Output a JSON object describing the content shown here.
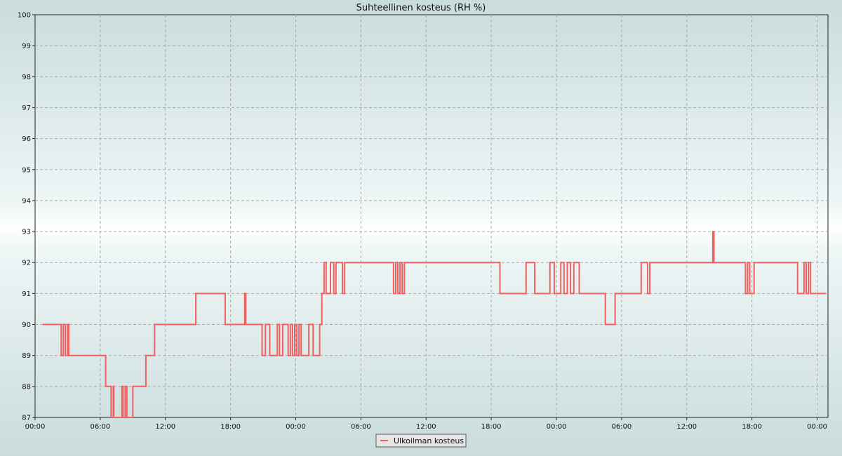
{
  "chart_data": {
    "type": "line",
    "title": "Suhteellinen kosteus (RH %)",
    "xlabel": "",
    "ylabel": "",
    "ylim": [
      87,
      100
    ],
    "y_ticks": [
      "87",
      "88",
      "89",
      "90",
      "91",
      "92",
      "93",
      "94",
      "95",
      "96",
      "97",
      "98",
      "99",
      "100"
    ],
    "x_tick_labels": [
      "00:00",
      "06:00",
      "12:00",
      "18:00",
      "00:00",
      "06:00",
      "12:00",
      "18:00",
      "00:00",
      "06:00",
      "12:00",
      "18:00",
      "00:00"
    ],
    "x_range_hours": [
      0,
      73
    ],
    "grid": true,
    "legend_position": "bottom",
    "series": [
      {
        "name": "Ulkoilman kosteus",
        "color": "#f06060",
        "points": [
          [
            0.7,
            90
          ],
          [
            2.4,
            90
          ],
          [
            2.4,
            89
          ],
          [
            2.6,
            89
          ],
          [
            2.6,
            90
          ],
          [
            2.8,
            90
          ],
          [
            2.8,
            89
          ],
          [
            3.0,
            89
          ],
          [
            3.0,
            90
          ],
          [
            3.1,
            90
          ],
          [
            3.1,
            89
          ],
          [
            6.5,
            89
          ],
          [
            6.5,
            88
          ],
          [
            7.0,
            88
          ],
          [
            7.0,
            87
          ],
          [
            7.2,
            87
          ],
          [
            7.2,
            88
          ],
          [
            7.25,
            88
          ],
          [
            7.25,
            87
          ],
          [
            8.0,
            87
          ],
          [
            8.0,
            88
          ],
          [
            8.1,
            88
          ],
          [
            8.1,
            87
          ],
          [
            8.3,
            87
          ],
          [
            8.3,
            88
          ],
          [
            8.45,
            88
          ],
          [
            8.45,
            87
          ],
          [
            9.0,
            87
          ],
          [
            9.0,
            88
          ],
          [
            10.2,
            88
          ],
          [
            10.2,
            89
          ],
          [
            11.0,
            89
          ],
          [
            11.0,
            90
          ],
          [
            14.8,
            90
          ],
          [
            14.8,
            91
          ],
          [
            17.5,
            91
          ],
          [
            17.5,
            90
          ],
          [
            19.3,
            90
          ],
          [
            19.3,
            91
          ],
          [
            19.4,
            91
          ],
          [
            19.4,
            90
          ],
          [
            20.9,
            90
          ],
          [
            20.9,
            89
          ],
          [
            21.2,
            89
          ],
          [
            21.2,
            90
          ],
          [
            21.6,
            90
          ],
          [
            21.6,
            89
          ],
          [
            22.3,
            89
          ],
          [
            22.3,
            90
          ],
          [
            22.5,
            90
          ],
          [
            22.5,
            89
          ],
          [
            22.8,
            89
          ],
          [
            22.8,
            90
          ],
          [
            23.3,
            90
          ],
          [
            23.3,
            89
          ],
          [
            23.5,
            89
          ],
          [
            23.5,
            90
          ],
          [
            23.7,
            90
          ],
          [
            23.7,
            89
          ],
          [
            23.9,
            89
          ],
          [
            23.9,
            90
          ],
          [
            24.1,
            90
          ],
          [
            24.1,
            89
          ],
          [
            24.3,
            89
          ],
          [
            24.3,
            90
          ],
          [
            24.5,
            90
          ],
          [
            24.5,
            89
          ],
          [
            25.2,
            89
          ],
          [
            25.2,
            90
          ],
          [
            25.6,
            90
          ],
          [
            25.6,
            89
          ],
          [
            26.2,
            89
          ],
          [
            26.2,
            90
          ],
          [
            26.4,
            90
          ],
          [
            26.4,
            91
          ],
          [
            26.6,
            91
          ],
          [
            26.6,
            92
          ],
          [
            26.8,
            92
          ],
          [
            26.8,
            91
          ],
          [
            27.2,
            91
          ],
          [
            27.2,
            92
          ],
          [
            27.5,
            92
          ],
          [
            27.5,
            91
          ],
          [
            27.7,
            91
          ],
          [
            27.7,
            92
          ],
          [
            28.3,
            92
          ],
          [
            28.3,
            91
          ],
          [
            28.5,
            91
          ],
          [
            28.5,
            92
          ],
          [
            33.0,
            92
          ],
          [
            33.0,
            91
          ],
          [
            33.2,
            91
          ],
          [
            33.2,
            92
          ],
          [
            33.4,
            92
          ],
          [
            33.4,
            91
          ],
          [
            33.6,
            91
          ],
          [
            33.6,
            92
          ],
          [
            33.8,
            92
          ],
          [
            33.8,
            91
          ],
          [
            34.0,
            91
          ],
          [
            34.0,
            92
          ],
          [
            42.8,
            92
          ],
          [
            42.8,
            91
          ],
          [
            45.2,
            91
          ],
          [
            45.2,
            92
          ],
          [
            46.0,
            92
          ],
          [
            46.0,
            91
          ],
          [
            47.4,
            91
          ],
          [
            47.4,
            92
          ],
          [
            47.8,
            92
          ],
          [
            47.8,
            91
          ],
          [
            48.4,
            91
          ],
          [
            48.4,
            92
          ],
          [
            48.7,
            92
          ],
          [
            48.7,
            91
          ],
          [
            49.0,
            91
          ],
          [
            49.0,
            92
          ],
          [
            49.3,
            92
          ],
          [
            49.3,
            91
          ],
          [
            49.6,
            91
          ],
          [
            49.6,
            92
          ],
          [
            50.1,
            92
          ],
          [
            50.1,
            91
          ],
          [
            52.5,
            91
          ],
          [
            52.5,
            90
          ],
          [
            53.4,
            90
          ],
          [
            53.4,
            91
          ],
          [
            55.8,
            91
          ],
          [
            55.8,
            92
          ],
          [
            56.4,
            92
          ],
          [
            56.4,
            91
          ],
          [
            56.6,
            91
          ],
          [
            56.6,
            92
          ],
          [
            62.4,
            92
          ],
          [
            62.4,
            93
          ],
          [
            62.5,
            93
          ],
          [
            62.5,
            92
          ],
          [
            65.4,
            92
          ],
          [
            65.4,
            91
          ],
          [
            65.6,
            91
          ],
          [
            65.6,
            92
          ],
          [
            65.8,
            92
          ],
          [
            65.8,
            91
          ],
          [
            66.2,
            91
          ],
          [
            66.2,
            92
          ],
          [
            70.2,
            92
          ],
          [
            70.2,
            91
          ],
          [
            70.8,
            91
          ],
          [
            70.8,
            92
          ],
          [
            71.0,
            92
          ],
          [
            71.0,
            91
          ],
          [
            71.2,
            91
          ],
          [
            71.2,
            92
          ],
          [
            71.4,
            92
          ],
          [
            71.4,
            91
          ],
          [
            72.8,
            91
          ]
        ]
      }
    ]
  }
}
